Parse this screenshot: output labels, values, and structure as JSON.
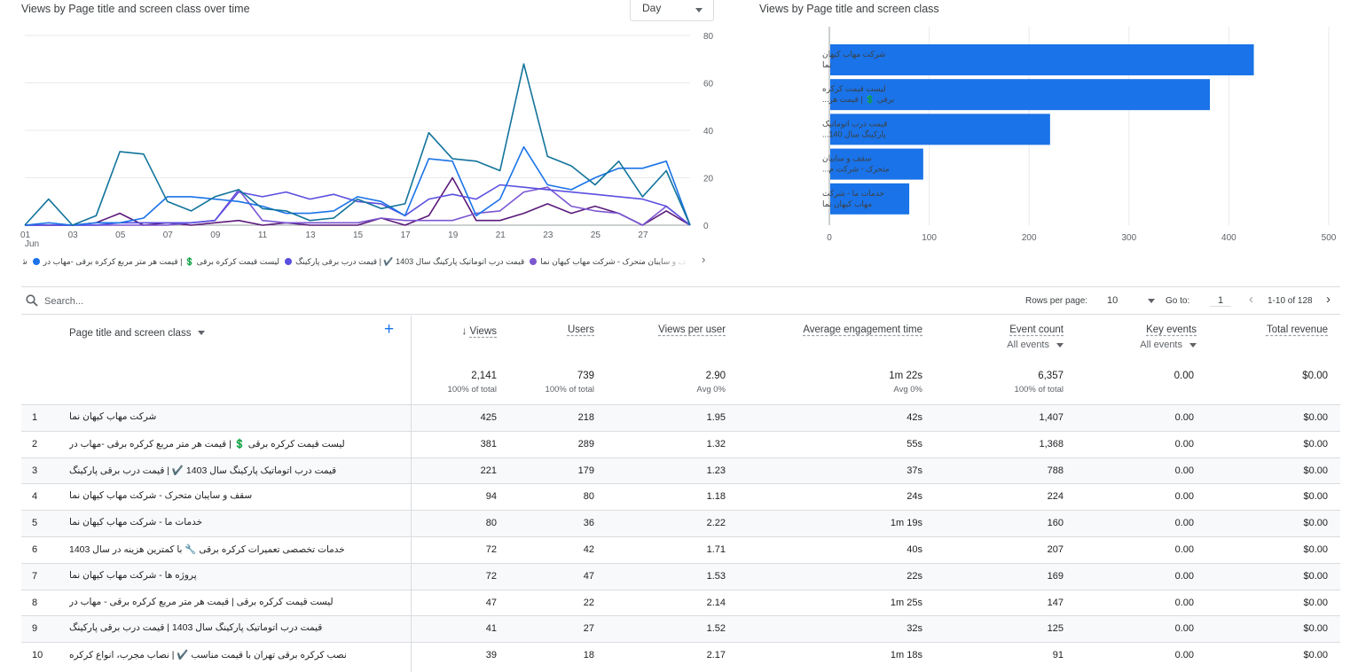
{
  "line_chart": {
    "title": "Views by Page title and screen class over time",
    "period_selector": "Day",
    "colors": [
      "#12739b",
      "#1a73e8",
      "#5a4fe0",
      "#7b57d1",
      "#5b1a7a"
    ],
    "x_tick_labels": [
      "01",
      "03",
      "05",
      "07",
      "09",
      "11",
      "13",
      "15",
      "17",
      "19",
      "21",
      "23",
      "25",
      "27"
    ],
    "x_month_label": "Jun",
    "y_tick_labels": [
      "80",
      "60",
      "40",
      "20",
      "0"
    ],
    "legend": [
      {
        "label": "شرکت مهاب کیهان نما",
        "color": "#12739b"
      },
      {
        "label": "لیست قیمت کرکره برقی 💲 | قیمت هر متر مربع کرکره برقی -مهاب در",
        "color": "#1a73e8"
      },
      {
        "label": "قیمت درب اتوماتیک پارکینگ سال 1403 ✔️ | قیمت درب برقی پارکینگ",
        "color": "#5a4fe0"
      },
      {
        "label": "سقف و سایبان متحرک - شرکت مهاب کیهان نما",
        "color": "#7b57d1"
      }
    ]
  },
  "chart_data": [
    {
      "type": "line",
      "title": "Views by Page title and screen class over time",
      "xlabel": "",
      "ylabel": "",
      "ylim": [
        0,
        80
      ],
      "x": [
        1,
        2,
        3,
        4,
        5,
        6,
        7,
        8,
        9,
        10,
        11,
        12,
        13,
        14,
        15,
        16,
        17,
        18,
        19,
        20,
        21,
        22,
        23,
        24,
        25,
        26,
        27,
        28,
        29
      ],
      "series": [
        {
          "name": "شرکت مهاب کیهان نما",
          "values": [
            0,
            11,
            0,
            4,
            31,
            30,
            10,
            6,
            12,
            15,
            7,
            6,
            2,
            3,
            11,
            7,
            9,
            39,
            28,
            27,
            23,
            68,
            29,
            25,
            17,
            27,
            12,
            23,
            0
          ]
        },
        {
          "name": "لیست قیمت کرکره برقی 💲 | قیمت هر متر مربع کرکره برقی -مهاب در",
          "values": [
            0,
            1,
            0,
            1,
            1,
            3,
            12,
            12,
            11,
            10,
            8,
            5,
            5,
            6,
            12,
            10,
            4,
            28,
            27,
            4,
            11,
            33,
            17,
            15,
            20,
            24,
            24,
            27,
            0
          ]
        },
        {
          "name": "قیمت درب اتوماتیک پارکینگ سال 1403 ✔️ | قیمت درب برقی پارکینگ",
          "values": [
            0,
            0,
            0,
            0,
            1,
            1,
            1,
            1,
            2,
            14,
            12,
            14,
            11,
            13,
            10,
            9,
            4,
            11,
            13,
            11,
            17,
            16,
            15,
            14,
            13,
            12,
            11,
            8,
            0
          ]
        },
        {
          "name": "سقف و سایبان متحرک - شرکت مهاب کیهان نما",
          "values": [
            0,
            0,
            0,
            0,
            0,
            0,
            0,
            1,
            2,
            15,
            2,
            1,
            1,
            1,
            1,
            3,
            2,
            2,
            2,
            5,
            6,
            14,
            16,
            8,
            6,
            5,
            0,
            8,
            0
          ]
        },
        {
          "name": "",
          "values": [
            0,
            0,
            0,
            1,
            5,
            0,
            1,
            0,
            1,
            2,
            0,
            1,
            0,
            0,
            0,
            3,
            0,
            4,
            20,
            2,
            2,
            5,
            9,
            5,
            8,
            5,
            0,
            6,
            0
          ]
        }
      ]
    },
    {
      "type": "bar",
      "title": "Views by Page title and screen class",
      "xlabel": "",
      "ylabel": "",
      "xlim": [
        0,
        500
      ],
      "x_tick_labels": [
        "0",
        "100",
        "200",
        "300",
        "400",
        "500"
      ],
      "categories": [
        [
          "شرکت مهاب کیهان",
          "نما"
        ],
        [
          "لیست قیمت کرکره",
          "برقی 💲 | قیمت هر..."
        ],
        [
          "قیمت درب اتوماتیک",
          "پارکینگ سال 140..."
        ],
        [
          "سقف و سایبان",
          "متحرک - شرکت م..."
        ],
        [
          "خدمات ما - شرکت",
          "مهاب کیهان نما"
        ]
      ],
      "values": [
        425,
        381,
        221,
        94,
        80
      ],
      "color": "#1a73e8"
    }
  ],
  "toolbar": {
    "search_placeholder": "Search...",
    "rows_per_page_label": "Rows per page:",
    "rows_per_page": "10",
    "goto_label": "Go to:",
    "goto_value": "1",
    "page_range": "1-10 of 128"
  },
  "table": {
    "dimension_header": "Page title and screen class",
    "headers": {
      "views": "Views",
      "users": "Users",
      "views_per_user": "Views per user",
      "engagement": "Average engagement time",
      "event_count": "Event count",
      "event_count_filter": "All events",
      "key_events": "Key events",
      "key_events_filter": "All events",
      "revenue": "Total revenue"
    },
    "totals": {
      "views": "2,141",
      "views_sub": "100% of total",
      "users": "739",
      "users_sub": "100% of total",
      "views_per_user": "2.90",
      "views_per_user_sub": "Avg 0%",
      "engagement": "1m 22s",
      "engagement_sub": "Avg 0%",
      "event_count": "6,357",
      "event_count_sub": "100% of total",
      "key_events": "0.00",
      "revenue": "$0.00"
    },
    "rows": [
      {
        "idx": "1",
        "title": "شرکت مهاب کیهان نما",
        "views": "425",
        "users": "218",
        "vpu": "1.95",
        "eng": "42s",
        "events": "1,407",
        "key": "0.00",
        "rev": "$0.00"
      },
      {
        "idx": "2",
        "title": "لیست قیمت کرکره برقی 💲 | قیمت هر متر مربع کرکره برقی -مهاب در",
        "views": "381",
        "users": "289",
        "vpu": "1.32",
        "eng": "55s",
        "events": "1,368",
        "key": "0.00",
        "rev": "$0.00"
      },
      {
        "idx": "3",
        "title": "قیمت درب اتوماتیک پارکینگ سال 1403 ✔️ | قیمت درب برقی پارکینگ",
        "views": "221",
        "users": "179",
        "vpu": "1.23",
        "eng": "37s",
        "events": "788",
        "key": "0.00",
        "rev": "$0.00"
      },
      {
        "idx": "4",
        "title": "سقف و سایبان متحرک - شرکت مهاب کیهان نما",
        "views": "94",
        "users": "80",
        "vpu": "1.18",
        "eng": "24s",
        "events": "224",
        "key": "0.00",
        "rev": "$0.00"
      },
      {
        "idx": "5",
        "title": "خدمات ما - شرکت مهاب کیهان نما",
        "views": "80",
        "users": "36",
        "vpu": "2.22",
        "eng": "1m 19s",
        "events": "160",
        "key": "0.00",
        "rev": "$0.00"
      },
      {
        "idx": "6",
        "title": "خدمات تخصصی تعمیرات کرکره برقی 🔧 با کمترین هزینه در سال 1403",
        "views": "72",
        "users": "42",
        "vpu": "1.71",
        "eng": "40s",
        "events": "207",
        "key": "0.00",
        "rev": "$0.00"
      },
      {
        "idx": "7",
        "title": "پروژه ها - شرکت مهاب کیهان نما",
        "views": "72",
        "users": "47",
        "vpu": "1.53",
        "eng": "22s",
        "events": "169",
        "key": "0.00",
        "rev": "$0.00"
      },
      {
        "idx": "8",
        "title": "لیست قیمت کرکره برقی | قیمت هر متر مربع کرکره برقی - مهاب در",
        "views": "47",
        "users": "22",
        "vpu": "2.14",
        "eng": "1m 25s",
        "events": "147",
        "key": "0.00",
        "rev": "$0.00"
      },
      {
        "idx": "9",
        "title": "قیمت درب اتوماتیک پارکینگ سال 1403 | قیمت درب برقی پارکینگ",
        "views": "41",
        "users": "27",
        "vpu": "1.52",
        "eng": "32s",
        "events": "125",
        "key": "0.00",
        "rev": "$0.00"
      },
      {
        "idx": "10",
        "title": "نصب کرکره برقی تهران با قیمت مناسب ✔️ | نصاب مجرب، انواع کرکره",
        "views": "39",
        "users": "18",
        "vpu": "2.17",
        "eng": "1m 18s",
        "events": "91",
        "key": "0.00",
        "rev": "$0.00"
      }
    ]
  }
}
